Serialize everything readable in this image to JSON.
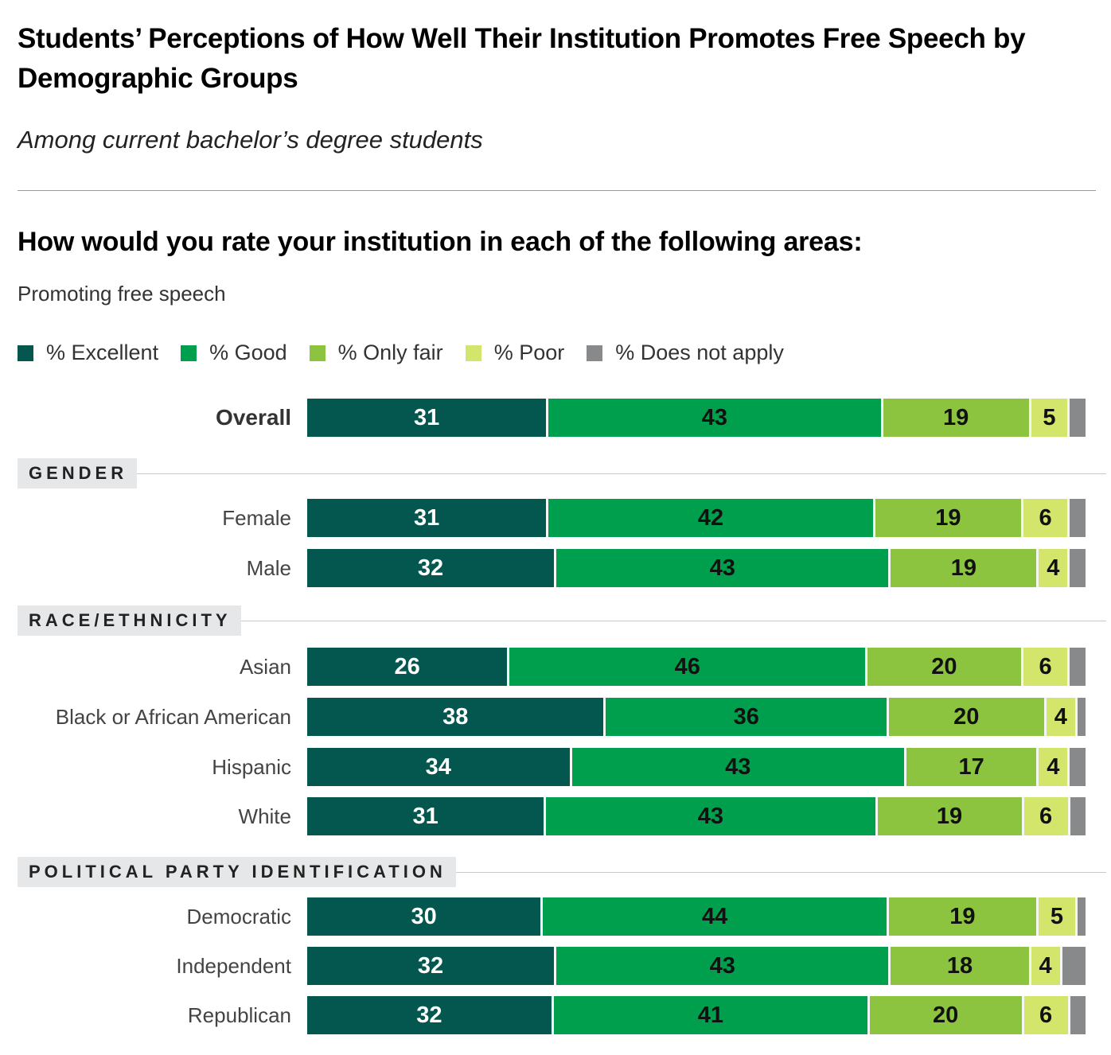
{
  "header": {
    "title": "Students’ Perceptions of How Well Their Institution Promotes Free Speech by Demographic Groups",
    "subtitle": "Among current bachelor’s degree students",
    "question": "How would you rate your institution in each of the following areas:",
    "area": "Promoting free speech"
  },
  "legend": [
    {
      "label": "% Excellent",
      "color": "#03574f"
    },
    {
      "label": "% Good",
      "color": "#009f4d"
    },
    {
      "label": "% Only fair",
      "color": "#8cc43f"
    },
    {
      "label": "% Poor",
      "color": "#d3e56a"
    },
    {
      "label": "% Does not apply",
      "color": "#87898a"
    }
  ],
  "label_colors": [
    "#ffffff",
    "#111111",
    "#111111",
    "#111111",
    "#111111"
  ],
  "chart_data": {
    "type": "bar",
    "orientation": "horizontal-stacked-100",
    "title": "Students’ Perceptions of How Well Their Institution Promotes Free Speech by Demographic Groups",
    "subtitle": "Among current bachelor’s degree students",
    "question": "How would you rate your institution in each of the following areas: Promoting free speech",
    "legend_position": "top-left",
    "series_names": [
      "% Excellent",
      "% Good",
      "% Only fair",
      "% Poor",
      "% Does not apply"
    ],
    "groups": [
      {
        "name": "",
        "rows": [
          {
            "label": "Overall",
            "values": [
              31,
              43,
              19,
              5,
              2
            ]
          }
        ]
      },
      {
        "name": "GENDER",
        "rows": [
          {
            "label": "Female",
            "values": [
              31,
              42,
              19,
              6,
              2
            ]
          },
          {
            "label": "Male",
            "values": [
              32,
              43,
              19,
              4,
              2
            ]
          }
        ]
      },
      {
        "name": "RACE/ETHNICITY",
        "rows": [
          {
            "label": "Asian",
            "values": [
              26,
              46,
              20,
              6,
              2
            ]
          },
          {
            "label": "Black or African American",
            "values": [
              38,
              36,
              20,
              4,
              1
            ]
          },
          {
            "label": "Hispanic",
            "values": [
              34,
              43,
              17,
              4,
              2
            ]
          },
          {
            "label": "White",
            "values": [
              31,
              43,
              19,
              6,
              2
            ]
          }
        ]
      },
      {
        "name": "POLITICAL PARTY IDENTIFICATION",
        "rows": [
          {
            "label": "Democratic",
            "values": [
              30,
              44,
              19,
              5,
              1
            ]
          },
          {
            "label": "Independent",
            "values": [
              32,
              43,
              18,
              4,
              3
            ]
          },
          {
            "label": "Republican",
            "values": [
              32,
              41,
              20,
              6,
              2
            ]
          }
        ]
      }
    ],
    "value_labels_shown_for": [
      "% Excellent",
      "% Good",
      "% Only fair",
      "% Poor"
    ]
  }
}
